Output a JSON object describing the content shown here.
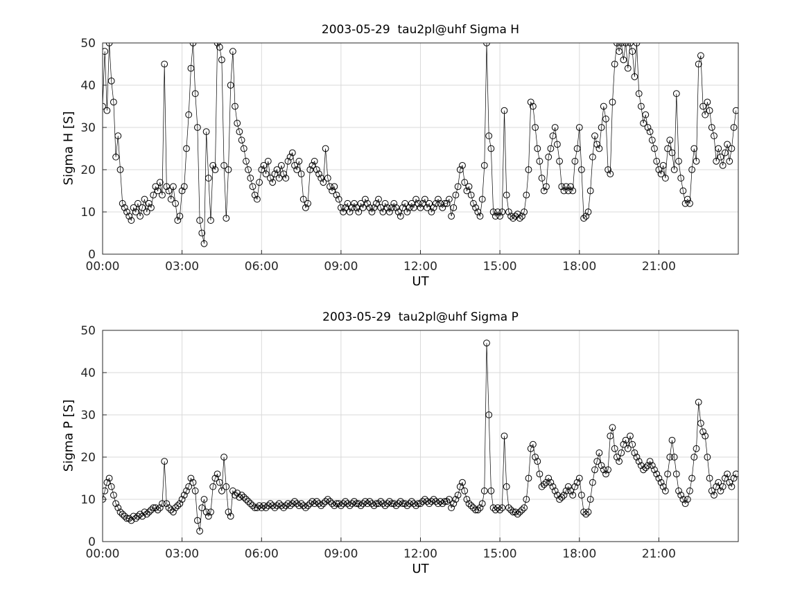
{
  "figure": {
    "background": "#ffffff",
    "axis_color": "#262626",
    "grid_color": "#d9d9d9",
    "marker_color": "#000000",
    "line_color": "#000000"
  },
  "chart_data": [
    {
      "type": "scatter",
      "title": "2003-05-29  tau2pl@uhf Sigma H",
      "xlabel": "UT",
      "ylabel": "Sigma H [S]",
      "xlim": [
        0,
        24
      ],
      "ylim": [
        0,
        50
      ],
      "xticks": [
        0,
        3,
        6,
        9,
        12,
        15,
        18,
        21
      ],
      "xtick_labels": [
        "00:00",
        "03:00",
        "06:00",
        "09:00",
        "12:00",
        "15:00",
        "18:00",
        "21:00"
      ],
      "yticks": [
        0,
        10,
        20,
        30,
        40,
        50
      ],
      "grid": true,
      "marker": "open-circle",
      "line": true,
      "t_start": 0,
      "t_step_minutes": 5,
      "values": [
        35,
        48,
        34,
        50,
        41,
        36,
        23,
        28,
        20,
        12,
        11,
        10,
        9,
        8,
        11,
        10,
        12,
        9,
        11,
        13,
        10,
        12,
        11,
        14,
        16,
        15,
        17,
        14,
        45,
        16,
        15,
        13,
        16,
        12,
        8,
        9,
        15,
        16,
        25,
        33,
        44,
        50,
        38,
        30,
        8,
        5,
        2.5,
        29,
        18,
        8,
        21,
        20,
        50,
        49,
        46,
        21,
        8.5,
        20,
        40,
        48,
        35,
        31,
        29,
        27,
        25,
        22,
        20,
        18,
        16,
        14,
        13,
        17,
        20,
        21,
        19,
        22,
        18,
        17,
        19,
        20,
        18,
        21,
        19,
        18,
        22,
        23,
        24,
        21,
        20,
        22,
        19,
        13,
        11,
        12,
        20,
        21,
        22,
        20,
        19,
        18,
        17,
        25,
        18,
        16,
        15,
        16,
        14,
        13,
        11,
        10,
        11,
        12,
        10,
        11,
        12,
        11,
        10,
        12,
        11,
        13,
        12,
        11,
        10,
        11,
        12,
        13,
        11,
        10,
        12,
        11,
        10,
        11,
        12,
        11,
        10,
        9,
        11,
        12,
        10,
        11,
        12,
        11,
        13,
        12,
        11,
        12,
        13,
        11,
        12,
        10,
        11,
        12,
        13,
        12,
        11,
        12,
        12,
        13,
        9,
        11,
        14,
        16,
        20,
        21,
        17,
        15,
        16,
        14,
        12,
        11,
        10,
        9,
        13,
        21,
        50,
        28,
        25,
        10,
        9,
        10,
        9,
        10,
        34,
        14,
        10,
        9,
        8.5,
        9,
        9.5,
        8.5,
        9,
        10,
        14,
        20,
        36,
        35,
        30,
        25,
        22,
        18,
        15,
        16,
        23,
        25,
        28,
        30,
        26,
        22,
        16,
        15,
        16,
        15,
        16,
        15,
        22,
        25,
        30,
        20,
        8.5,
        9,
        10,
        15,
        23,
        28,
        26,
        25,
        30,
        35,
        32,
        20,
        19,
        36,
        45,
        50,
        48,
        50,
        46,
        50,
        44,
        50,
        48,
        42,
        50,
        38,
        35,
        31,
        33,
        30,
        29,
        27,
        25,
        22,
        20,
        19,
        21,
        18,
        25,
        27,
        24,
        20,
        38,
        22,
        18,
        15,
        12,
        13,
        12,
        20,
        25,
        22,
        45,
        47,
        35,
        33,
        36,
        34,
        30,
        28,
        22,
        25,
        23,
        21,
        24,
        26,
        22,
        25,
        30,
        34
      ]
    },
    {
      "type": "scatter",
      "title": "2003-05-29  tau2pl@uhf Sigma P",
      "xlabel": "UT",
      "ylabel": "Sigma P [S]",
      "xlim": [
        0,
        24
      ],
      "ylim": [
        0,
        50
      ],
      "xticks": [
        0,
        3,
        6,
        9,
        12,
        15,
        18,
        21
      ],
      "xtick_labels": [
        "00:00",
        "03:00",
        "06:00",
        "09:00",
        "12:00",
        "15:00",
        "18:00",
        "21:00"
      ],
      "yticks": [
        0,
        10,
        20,
        30,
        40,
        50
      ],
      "grid": true,
      "marker": "open-circle",
      "line": true,
      "t_start": 0,
      "t_step_minutes": 5,
      "values": [
        10,
        12,
        14,
        15,
        13,
        11,
        9,
        8,
        7,
        6.5,
        6,
        5.5,
        5.5,
        5,
        6,
        5.5,
        6,
        6.5,
        6,
        7,
        6.5,
        7,
        7.5,
        8,
        8,
        7.5,
        8,
        9,
        19,
        9,
        8,
        7.5,
        7,
        8,
        8.5,
        9,
        10,
        11,
        12,
        13,
        15,
        14,
        12,
        5,
        2.5,
        8,
        10,
        7,
        6,
        7,
        13,
        15,
        16,
        14,
        12,
        20,
        13,
        7,
        6,
        12,
        11,
        11.5,
        10.5,
        11,
        10.5,
        10,
        9.5,
        9,
        8.5,
        8,
        8,
        8.5,
        8,
        8.5,
        8,
        8.5,
        9,
        8.5,
        8,
        8.5,
        9,
        8.5,
        8,
        8.5,
        9,
        8.5,
        9,
        9.5,
        9,
        8.5,
        9,
        8.5,
        8,
        8.5,
        9,
        9.5,
        9,
        9.5,
        9,
        8.5,
        9,
        9.5,
        10,
        9.5,
        9,
        8.5,
        9,
        9,
        8.5,
        9,
        9.5,
        9,
        8.5,
        9,
        9.5,
        9,
        9,
        8.5,
        9,
        9.5,
        9,
        9.5,
        9,
        8.5,
        9,
        9,
        9.5,
        9,
        8.5,
        9,
        9.5,
        9,
        9,
        8.5,
        9,
        9.5,
        9,
        9,
        8.5,
        9,
        9.5,
        9,
        8.5,
        9,
        9,
        9.5,
        10,
        9.5,
        9,
        9.5,
        10,
        9.5,
        9,
        9.5,
        9,
        9.5,
        9.5,
        10,
        8,
        9,
        10,
        11,
        13,
        14,
        12,
        10,
        9,
        8.5,
        8,
        7.5,
        7.5,
        8,
        9,
        12,
        47,
        30,
        12,
        8,
        7.5,
        8,
        7.5,
        8,
        25,
        13,
        8,
        7.5,
        7,
        7,
        6.5,
        7,
        7.5,
        8,
        10,
        15,
        22,
        23,
        20,
        19,
        16,
        13,
        13.5,
        14,
        15,
        14,
        13,
        12,
        11,
        10,
        10.5,
        11,
        12,
        13,
        12,
        11,
        13,
        14,
        15,
        11,
        7,
        6.5,
        7,
        10,
        14,
        17,
        19,
        21,
        18,
        17,
        16,
        17,
        25,
        27,
        22,
        20,
        19,
        21,
        23,
        24,
        22,
        25,
        23,
        21,
        20,
        19,
        18,
        17,
        17.5,
        18,
        19,
        18,
        17,
        16,
        15,
        14,
        13,
        12,
        16,
        20,
        24,
        20,
        16,
        12,
        11,
        10,
        9,
        10,
        12,
        15,
        20,
        22,
        33,
        28,
        26,
        25,
        20,
        15,
        12,
        11,
        13,
        14,
        12,
        13,
        15,
        16,
        14,
        13,
        15,
        16
      ]
    }
  ]
}
